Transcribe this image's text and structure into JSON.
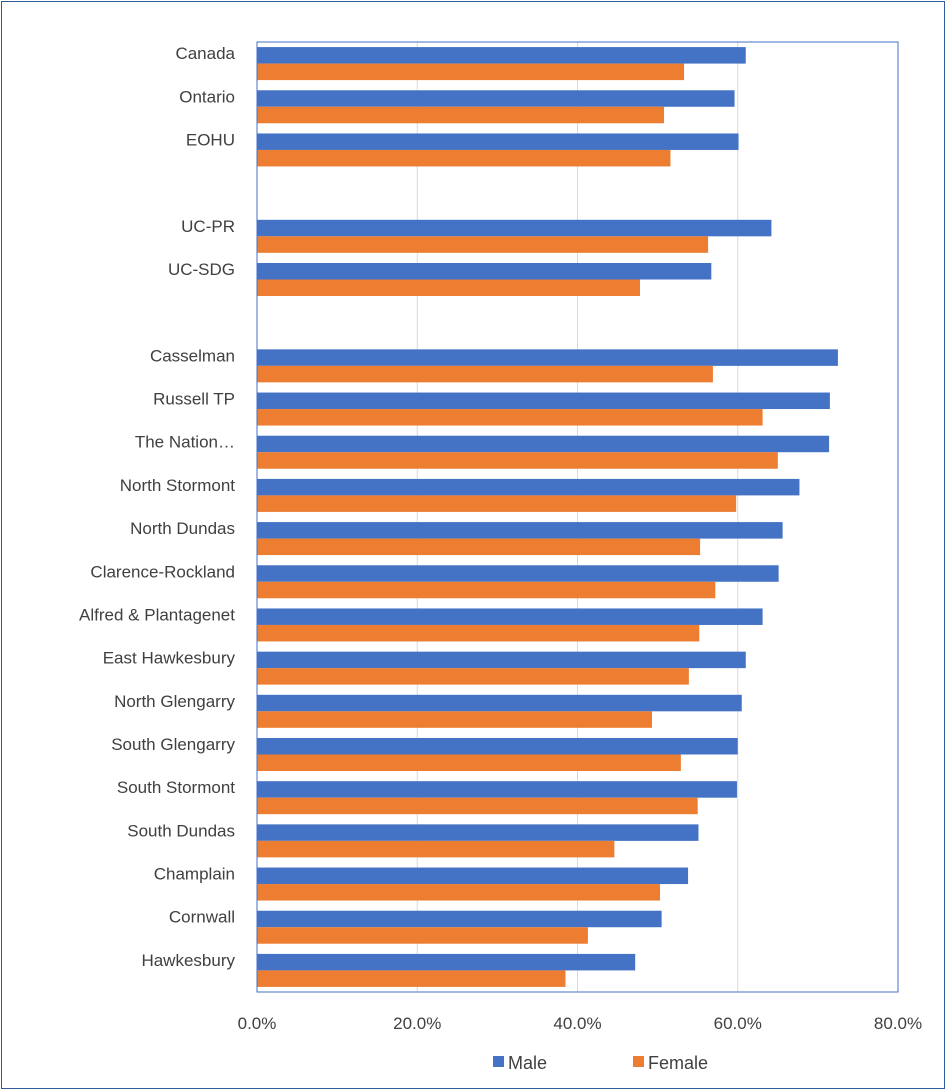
{
  "chart_data": {
    "type": "bar",
    "orientation": "horizontal",
    "categories": [
      "Canada",
      "Ontario",
      "EOHU",
      "",
      "UC-PR",
      "UC-SDG",
      "",
      "Casselman",
      "Russell TP",
      "The Nation…",
      "North Stormont",
      "North Dundas",
      "Clarence-Rockland",
      "Alfred & Plantagenet",
      "East Hawkesbury",
      "North Glengarry",
      "South Glengarry",
      "South Stormont",
      "South Dundas",
      "Champlain",
      "Cornwall",
      "Hawkesbury"
    ],
    "series": [
      {
        "name": "Male",
        "color": "#4472c4",
        "values": [
          61.0,
          59.6,
          60.1,
          null,
          64.2,
          56.7,
          null,
          72.5,
          71.5,
          71.4,
          67.7,
          65.6,
          65.1,
          63.1,
          61.0,
          60.5,
          60.0,
          59.9,
          55.1,
          53.8,
          50.5,
          47.2
        ]
      },
      {
        "name": "Female",
        "color": "#ed7d31",
        "values": [
          53.3,
          50.8,
          51.6,
          null,
          56.3,
          47.8,
          null,
          56.9,
          63.1,
          65.0,
          59.8,
          55.3,
          57.2,
          55.2,
          53.9,
          49.3,
          52.9,
          55.0,
          44.6,
          50.3,
          41.3,
          38.5
        ]
      }
    ],
    "xlim": [
      0,
      80
    ],
    "xticks": [
      "0.0%",
      "20.0%",
      "40.0%",
      "60.0%",
      "80.0%"
    ],
    "grid": true,
    "legend_position": "bottom"
  }
}
